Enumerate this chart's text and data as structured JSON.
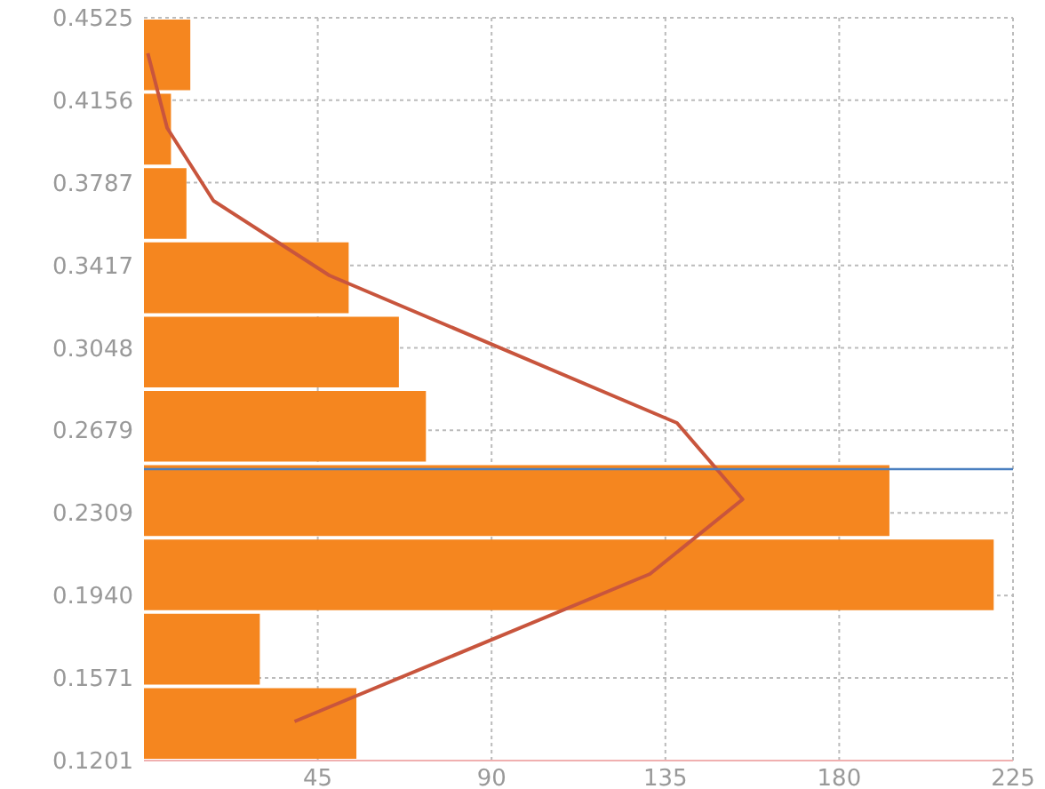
{
  "chart_data": {
    "type": "histogram",
    "orientation": "horizontal",
    "color": "#f5861f",
    "bins": [
      0.1201,
      0.1533,
      0.1866,
      0.2198,
      0.2531,
      0.2863,
      0.3195,
      0.3528,
      0.386,
      0.4193,
      0.4525
    ],
    "values": [
      55,
      30,
      220,
      193,
      73,
      66,
      53,
      11,
      7,
      12
    ],
    "series": [
      {
        "type": "line",
        "color": "#c8553d",
        "x": [
          0.1376,
          0.2036,
          0.237,
          0.2712,
          0.3372,
          0.3706,
          0.4032,
          0.4366
        ],
        "values": [
          39,
          131,
          155,
          138,
          48,
          18,
          6,
          1
        ]
      }
    ],
    "xlim": [
      0,
      225
    ],
    "xticks": [
      45,
      90,
      135,
      180,
      225
    ],
    "ylim": [
      0.1201,
      0.4525
    ],
    "yticks": [
      0.1201,
      0.1571,
      {
        "value": 0.194,
        "label": "0.1940"
      },
      0.2309,
      0.2679,
      0.3048,
      0.3417,
      0.3787,
      0.4156,
      0.4525
    ],
    "ref_lines": [
      {
        "axis": "y",
        "value": 0.2505,
        "color": "#4a7fc0"
      }
    ],
    "grid": true
  }
}
